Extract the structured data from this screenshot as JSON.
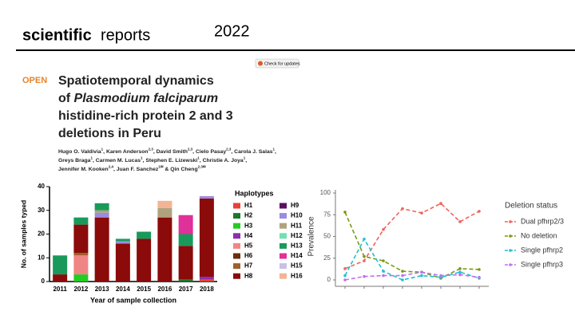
{
  "header": {
    "brand_bold": "scientific",
    "brand_regular": "reports",
    "year": "2022",
    "check": "Check for updates"
  },
  "article": {
    "open": "OPEN",
    "title": [
      "Spatiotemporal dynamics",
      "of ",
      "Plasmodium falciparum",
      "histidine-rich protein 2 and 3",
      "deletions in Peru"
    ],
    "authors": [
      [
        {
          "name": "Hugo O. Valdivia",
          "aff": "1",
          "sep": ", "
        },
        {
          "name": "Karen Anderson",
          "aff": "2,3",
          "sep": ", "
        },
        {
          "name": "David Smith",
          "aff": "2,3",
          "sep": ", "
        },
        {
          "name": "Cielo Pasay",
          "aff": "2,3",
          "sep": ", "
        },
        {
          "name": "Carola J. Salas",
          "aff": "1",
          "sep": ","
        }
      ],
      [
        {
          "name": "Greys Braga",
          "aff": "1",
          "sep": ", "
        },
        {
          "name": "Carmen M. Lucas",
          "aff": "1",
          "sep": ", "
        },
        {
          "name": "Stephen E. Lizewski",
          "aff": "1",
          "sep": ", "
        },
        {
          "name": "Christie A. Joya",
          "aff": "1",
          "sep": ","
        }
      ],
      [
        {
          "name": "Jennifer M. Kooken",
          "aff": "2,4",
          "sep": ", "
        },
        {
          "name": "Juan F. Sanchez",
          "aff": "1✉",
          "sep": " & "
        },
        {
          "name": "Qin Cheng",
          "aff": "2,3✉",
          "sep": ""
        }
      ]
    ]
  },
  "chart_data": [
    {
      "type": "stacked_bar",
      "ylabel": "No. of samples typed",
      "xlabel": "Year of sample collection",
      "legend_title": "Haplotypes",
      "categories": [
        "2011",
        "2012",
        "2013",
        "2014",
        "2015",
        "2016",
        "2017",
        "2018"
      ],
      "ylim": [
        0,
        40
      ],
      "yticks": [
        0,
        10,
        20,
        30,
        40
      ],
      "series": [
        {
          "name": "H1",
          "color": "#e8413a",
          "values": [
            0,
            0,
            0,
            0,
            0,
            0,
            0,
            1
          ]
        },
        {
          "name": "H2",
          "color": "#1a7a2a",
          "values": [
            0,
            0,
            0,
            0,
            0,
            0,
            1,
            0
          ]
        },
        {
          "name": "H3",
          "color": "#22cc22",
          "values": [
            0,
            3,
            0,
            0,
            0,
            0,
            0,
            0
          ]
        },
        {
          "name": "H4",
          "color": "#8a2fb0",
          "values": [
            0,
            0,
            0,
            0,
            0,
            0,
            0,
            1
          ]
        },
        {
          "name": "H5",
          "color": "#f08585",
          "values": [
            0,
            8,
            0,
            0,
            0,
            0,
            0,
            0
          ]
        },
        {
          "name": "H6",
          "color": "#6a2e10",
          "values": [
            0,
            0,
            0,
            0,
            0,
            0,
            0,
            0
          ]
        },
        {
          "name": "H7",
          "color": "#a0602a",
          "values": [
            0,
            1,
            0,
            0,
            0,
            0,
            0,
            0
          ]
        },
        {
          "name": "H8",
          "color": "#8b0a0a",
          "values": [
            3,
            12,
            27,
            16,
            18,
            27,
            14,
            33
          ]
        },
        {
          "name": "H9",
          "color": "#5a1060",
          "values": [
            0,
            0,
            0,
            0,
            0,
            0,
            0,
            0
          ]
        },
        {
          "name": "H10",
          "color": "#9a8ce0",
          "values": [
            0,
            0,
            2,
            1,
            0,
            0,
            0,
            1
          ]
        },
        {
          "name": "H11",
          "color": "#b0a27e",
          "values": [
            0,
            0,
            1,
            0,
            0,
            4,
            0,
            0
          ]
        },
        {
          "name": "H12",
          "color": "#70e0b0",
          "values": [
            0,
            0,
            0,
            0,
            0,
            0,
            0,
            0
          ]
        },
        {
          "name": "H13",
          "color": "#1a9a5a",
          "values": [
            8,
            3,
            3,
            1,
            3,
            0,
            5,
            0
          ]
        },
        {
          "name": "H14",
          "color": "#e0309a",
          "values": [
            0,
            0,
            0,
            0,
            0,
            0,
            8,
            0
          ]
        },
        {
          "name": "H15",
          "color": "#c8c0e8",
          "values": [
            0,
            0,
            0,
            0,
            0,
            0,
            0,
            0
          ]
        },
        {
          "name": "H16",
          "color": "#f2b494",
          "values": [
            0,
            0,
            0,
            0,
            0,
            3,
            0,
            0
          ]
        }
      ]
    },
    {
      "type": "line",
      "ylabel": "Prevalence",
      "legend_title": "Deletion status",
      "categories": [
        null,
        null,
        null,
        null,
        null,
        null,
        null,
        null
      ],
      "ylim": [
        0,
        100
      ],
      "yticks": [
        0,
        25,
        50,
        75,
        100
      ],
      "series": [
        {
          "name": "Dual pfhrp2/3",
          "color": "#f0645a",
          "values": [
            13,
            22,
            58,
            82,
            77,
            88,
            67,
            79
          ]
        },
        {
          "name": "No deletion",
          "color": "#7a9a10",
          "values": [
            78,
            27,
            22,
            10,
            9,
            2,
            13,
            12
          ]
        },
        {
          "name": "Single pfhrp2",
          "color": "#20c0d0",
          "values": [
            5,
            47,
            10,
            0,
            5,
            3,
            9,
            2
          ]
        },
        {
          "name": "Single pfhrp3",
          "color": "#c070f0",
          "values": [
            0,
            4,
            5,
            5,
            9,
            5,
            6,
            3
          ]
        }
      ]
    }
  ]
}
